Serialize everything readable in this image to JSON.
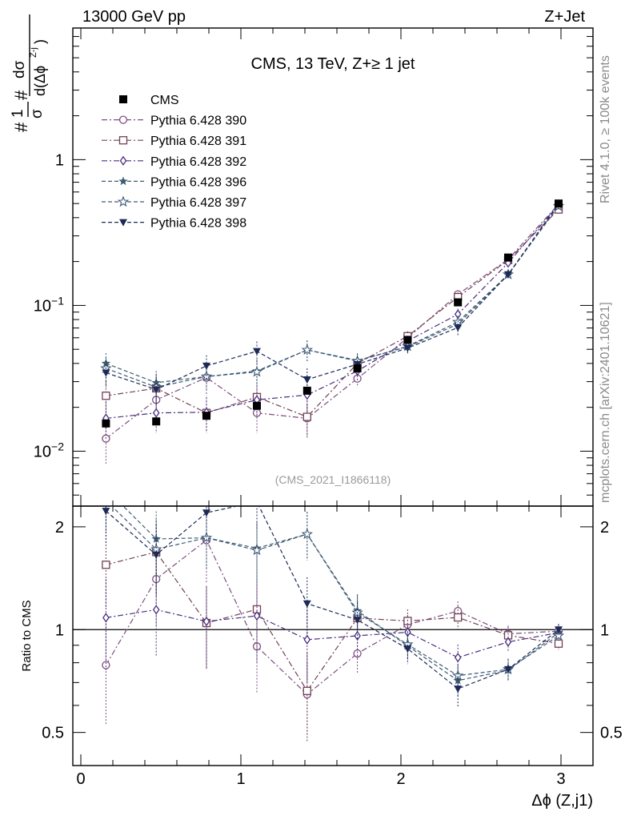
{
  "header": {
    "left": "13000 GeV pp",
    "right": "Z+Jet"
  },
  "side_labels": {
    "rivet": "Rivet 4.1.0, ≥ 100k events",
    "mcplots": "mcplots.cern.ch [arXiv:2401.10621]"
  },
  "chart_data": {
    "type": "line",
    "title": "CMS, 13 TeV, Z+≥ 1 jet",
    "watermark": "(CMS_2021_I1866118)",
    "xlabel": "Δϕ (Z,j1)",
    "ylabel": "#1/σ # dσ/d(Δϕ^{Z-j})",
    "ratio_ylabel": "Ratio to CMS",
    "yscale": "log",
    "xlim": [
      -0.05,
      3.2
    ],
    "ylim": [
      0.0042,
      8.0
    ],
    "ratio_ylim": [
      0.4,
      2.3
    ],
    "xticks": [
      "0",
      "1",
      "2",
      "3"
    ],
    "yticks": [
      "10^{-2}",
      "10^{-1}",
      "1"
    ],
    "ratio_yticks": [
      "0.5",
      "1",
      "2"
    ],
    "x": [
      0.157,
      0.471,
      0.785,
      1.1,
      1.414,
      1.728,
      2.042,
      2.356,
      2.67,
      2.985
    ],
    "data": {
      "name": "CMS",
      "values": [
        0.0155,
        0.016,
        0.0175,
        0.0205,
        0.026,
        0.037,
        0.058,
        0.105,
        0.213,
        0.5
      ],
      "errors": [
        0.001,
        0.001,
        0.001,
        0.0012,
        0.0015,
        0.0025,
        0.003,
        0.005,
        0.01,
        0.02
      ]
    },
    "series": [
      {
        "name": "Pythia 6.428 390",
        "color": "#7e4e7e",
        "marker": "circle-open",
        "dash": "dashdot",
        "values": [
          0.0122,
          0.0225,
          0.032,
          0.0183,
          0.0168,
          0.0315,
          0.06,
          0.119,
          0.207,
          0.495
        ],
        "errors": [
          0.004,
          0.006,
          0.008,
          0.005,
          0.004,
          0.004,
          0.004,
          0.008,
          0.012,
          0.02
        ]
      },
      {
        "name": "Pythia 6.428 391",
        "color": "#734155",
        "marker": "square-open",
        "dash": "dashdot",
        "values": [
          0.024,
          0.027,
          0.0183,
          0.0235,
          0.0172,
          0.04,
          0.0615,
          0.114,
          0.205,
          0.455
        ],
        "errors": [
          0.006,
          0.007,
          0.005,
          0.006,
          0.005,
          0.005,
          0.005,
          0.009,
          0.012,
          0.02
        ]
      },
      {
        "name": "Pythia 6.428 392",
        "color": "#4a2e80",
        "marker": "diamond-open",
        "dash": "dashdot",
        "values": [
          0.0168,
          0.0183,
          0.0185,
          0.0225,
          0.0243,
          0.0355,
          0.057,
          0.087,
          0.196,
          0.49
        ],
        "errors": [
          0.005,
          0.005,
          0.005,
          0.006,
          0.006,
          0.005,
          0.005,
          0.008,
          0.012,
          0.02
        ]
      },
      {
        "name": "Pythia 6.428 396",
        "color": "#3c5c70",
        "marker": "star-filled",
        "dash": "dashed",
        "values": [
          0.04,
          0.0295,
          0.0325,
          0.0355,
          0.0495,
          0.042,
          0.052,
          0.0745,
          0.162,
          0.49
        ],
        "errors": [
          0.007,
          0.006,
          0.006,
          0.007,
          0.008,
          0.005,
          0.005,
          0.008,
          0.012,
          0.02
        ]
      },
      {
        "name": "Pythia 6.428 397",
        "color": "#3e5a78",
        "marker": "star-open",
        "dash": "dashed",
        "values": [
          0.037,
          0.0275,
          0.0325,
          0.035,
          0.0495,
          0.0415,
          0.0525,
          0.077,
          0.163,
          0.48
        ],
        "errors": [
          0.007,
          0.006,
          0.006,
          0.007,
          0.008,
          0.005,
          0.005,
          0.008,
          0.012,
          0.02
        ]
      },
      {
        "name": "Pythia 6.428 398",
        "color": "#1c2a55",
        "marker": "triangle-down-filled",
        "dash": "dashed",
        "values": [
          0.0345,
          0.0265,
          0.0385,
          0.0485,
          0.031,
          0.0395,
          0.051,
          0.0705,
          0.163,
          0.5
        ],
        "errors": [
          0.007,
          0.006,
          0.007,
          0.008,
          0.006,
          0.005,
          0.005,
          0.008,
          0.012,
          0.02
        ]
      }
    ]
  }
}
